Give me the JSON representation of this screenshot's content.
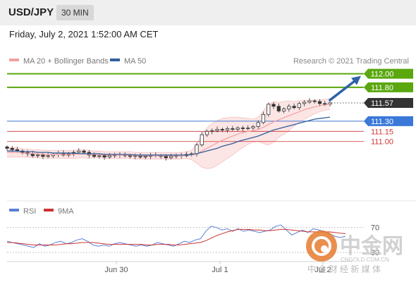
{
  "header": {
    "symbol": "USD/JPY",
    "timeframe": "30 MIN"
  },
  "datetime": "Friday, July 2, 2021 1:52:00 AM CET",
  "legend": {
    "bollinger": "MA 20 + Bollinger Bands",
    "ma50": "MA 50",
    "credit": "Research © 2021 Trading Central",
    "rsi": "RSI",
    "rsi_ma": "9MA"
  },
  "colors": {
    "candle": "#333333",
    "bollinger": "#f2a0a0",
    "band_fill": "#fbdcdc",
    "ma50": "#2f5f9a",
    "target": "#5aa70f",
    "support": "#3b78d8",
    "pivot_support": "#cc3333",
    "current": "#333333",
    "arrow": "#2e63a8",
    "rsi": "#5b7fd6",
    "rsi_ma": "#cc3333"
  },
  "watermark": {
    "brand": "中金网",
    "site": "CNGOLD.COM.CN",
    "tagline": "中 金 财 经 新 媒 体"
  },
  "chart_data": {
    "type": "line",
    "title": "USD/JPY",
    "x_ticks": [
      "Jun 30",
      "Jul 1",
      "Jul 2"
    ],
    "levels": [
      {
        "value": 112.0,
        "label": "112.00",
        "kind": "target"
      },
      {
        "value": 111.8,
        "label": "111.80",
        "kind": "target"
      },
      {
        "value": 111.57,
        "label": "111.57",
        "kind": "current"
      },
      {
        "value": 111.3,
        "label": "111.30",
        "kind": "support"
      },
      {
        "value": 111.15,
        "label": "111.15",
        "kind": "pivot"
      },
      {
        "value": 111.0,
        "label": "111.00",
        "kind": "pivot"
      }
    ],
    "price_ylim": [
      110.3,
      112.1
    ],
    "price_series": [
      110.9,
      110.88,
      110.86,
      110.84,
      110.82,
      110.79,
      110.8,
      110.78,
      110.79,
      110.81,
      110.83,
      110.8,
      110.82,
      110.84,
      110.86,
      110.84,
      110.8,
      110.78,
      110.79,
      110.77,
      110.79,
      110.81,
      110.8,
      110.79,
      110.78,
      110.79,
      110.77,
      110.78,
      110.8,
      110.79,
      110.78,
      110.76,
      110.78,
      110.8,
      110.79,
      110.81,
      110.82,
      110.95,
      111.1,
      111.15,
      111.16,
      111.18,
      111.17,
      111.19,
      111.18,
      111.2,
      111.19,
      111.2,
      111.22,
      111.28,
      111.4,
      111.55,
      111.52,
      111.45,
      111.48,
      111.52,
      111.5,
      111.56,
      111.58,
      111.6,
      111.59,
      111.56,
      111.55,
      111.57
    ],
    "ma20": [
      110.84,
      110.84,
      110.84,
      110.83,
      110.83,
      110.82,
      110.82,
      110.81,
      110.81,
      110.81,
      110.81,
      110.81,
      110.81,
      110.81,
      110.82,
      110.82,
      110.81,
      110.81,
      110.81,
      110.8,
      110.8,
      110.8,
      110.8,
      110.8,
      110.8,
      110.79,
      110.79,
      110.79,
      110.79,
      110.79,
      110.79,
      110.79,
      110.79,
      110.79,
      110.79,
      110.8,
      110.8,
      110.82,
      110.86,
      110.9,
      110.94,
      110.98,
      111.02,
      111.05,
      111.08,
      111.11,
      111.13,
      111.15,
      111.16,
      111.18,
      111.21,
      111.25,
      111.29,
      111.32,
      111.35,
      111.38,
      111.41,
      111.44,
      111.47,
      111.49,
      111.51,
      111.53,
      111.54,
      111.55
    ],
    "ma50": [
      110.86,
      110.86,
      110.86,
      110.85,
      110.85,
      110.85,
      110.84,
      110.84,
      110.84,
      110.83,
      110.83,
      110.83,
      110.83,
      110.83,
      110.82,
      110.82,
      110.82,
      110.82,
      110.82,
      110.81,
      110.81,
      110.81,
      110.81,
      110.81,
      110.81,
      110.8,
      110.8,
      110.8,
      110.8,
      110.8,
      110.8,
      110.8,
      110.8,
      110.8,
      110.8,
      110.8,
      110.81,
      110.82,
      110.84,
      110.86,
      110.88,
      110.9,
      110.93,
      110.95,
      110.97,
      111.0,
      111.02,
      111.04,
      111.06,
      111.08,
      111.11,
      111.14,
      111.17,
      111.19,
      111.21,
      111.23,
      111.25,
      111.27,
      111.29,
      111.31,
      111.33,
      111.34,
      111.35,
      111.36
    ],
    "band_width": [
      0.07,
      0.07,
      0.07,
      0.06,
      0.06,
      0.06,
      0.06,
      0.06,
      0.06,
      0.06,
      0.06,
      0.06,
      0.06,
      0.06,
      0.06,
      0.06,
      0.06,
      0.05,
      0.05,
      0.05,
      0.05,
      0.05,
      0.05,
      0.05,
      0.05,
      0.05,
      0.05,
      0.05,
      0.05,
      0.05,
      0.05,
      0.05,
      0.05,
      0.05,
      0.05,
      0.05,
      0.07,
      0.14,
      0.24,
      0.3,
      0.33,
      0.33,
      0.32,
      0.3,
      0.28,
      0.25,
      0.22,
      0.19,
      0.17,
      0.18,
      0.24,
      0.3,
      0.3,
      0.26,
      0.24,
      0.22,
      0.18,
      0.16,
      0.14,
      0.12,
      0.1,
      0.09,
      0.08,
      0.08
    ],
    "rsi_series": [
      48,
      46,
      44,
      42,
      40,
      38,
      44,
      40,
      42,
      46,
      48,
      44,
      46,
      50,
      52,
      48,
      42,
      40,
      42,
      40,
      44,
      46,
      44,
      42,
      40,
      42,
      40,
      42,
      46,
      44,
      42,
      40,
      44,
      48,
      46,
      50,
      52,
      64,
      72,
      70,
      66,
      68,
      64,
      68,
      64,
      66,
      64,
      62,
      64,
      66,
      72,
      74,
      66,
      58,
      62,
      66,
      62,
      68,
      66,
      64,
      60,
      56,
      54,
      56
    ],
    "rsi_ma": [
      46,
      46,
      45,
      44,
      43,
      42,
      42,
      42,
      42,
      42,
      43,
      44,
      44,
      45,
      46,
      46,
      46,
      45,
      44,
      43,
      43,
      43,
      43,
      43,
      43,
      43,
      42,
      42,
      43,
      43,
      43,
      42,
      42,
      43,
      44,
      45,
      46,
      49,
      53,
      57,
      60,
      63,
      65,
      67,
      67,
      67,
      66,
      66,
      65,
      65,
      66,
      67,
      67,
      66,
      65,
      64,
      63,
      63,
      63,
      63,
      63,
      62,
      61,
      60
    ],
    "rsi_ylim": [
      20,
      90
    ],
    "rsi_ticks": [
      70,
      30
    ]
  }
}
